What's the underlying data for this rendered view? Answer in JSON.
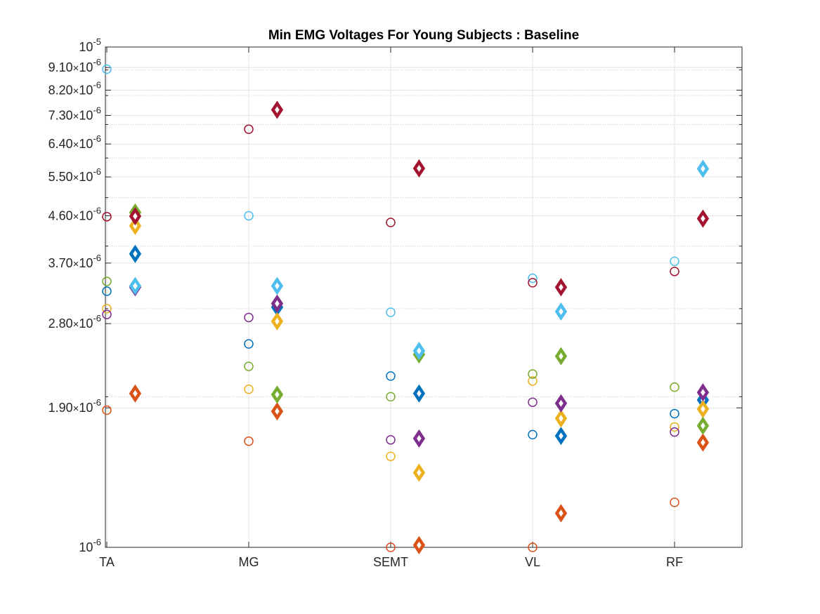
{
  "chart_data": {
    "type": "scatter",
    "title": "Min EMG Voltages For Young Subjects : Baseline",
    "xlabel": "",
    "ylabel": "",
    "y_scale": "log",
    "ylim": [
      1e-06,
      1e-05
    ],
    "categories": [
      "TA",
      "MG",
      "SEMT",
      "VL",
      "RF"
    ],
    "y_ticks": [
      {
        "value": 1e-06,
        "mantissa": "",
        "base": "10",
        "exp": "-6"
      },
      {
        "value": 1.9e-06,
        "mantissa": "1.90",
        "base": "10",
        "exp": "-6"
      },
      {
        "value": 2.8e-06,
        "mantissa": "2.80",
        "base": "10",
        "exp": "-6"
      },
      {
        "value": 3.7e-06,
        "mantissa": "3.70",
        "base": "10",
        "exp": "-6"
      },
      {
        "value": 4.6e-06,
        "mantissa": "4.60",
        "base": "10",
        "exp": "-6"
      },
      {
        "value": 5.5e-06,
        "mantissa": "5.50",
        "base": "10",
        "exp": "-6"
      },
      {
        "value": 6.4e-06,
        "mantissa": "6.40",
        "base": "10",
        "exp": "-6"
      },
      {
        "value": 7.3e-06,
        "mantissa": "7.30",
        "base": "10",
        "exp": "-6"
      },
      {
        "value": 8.2e-06,
        "mantissa": "8.20",
        "base": "10",
        "exp": "-6"
      },
      {
        "value": 9.1e-06,
        "mantissa": "9.10",
        "base": "10",
        "exp": "-6"
      },
      {
        "value": 1e-05,
        "mantissa": "",
        "base": "10",
        "exp": "-5"
      }
    ],
    "grid": true,
    "legend": "none",
    "marker_groups": [
      {
        "marker": "circle",
        "offset": 0
      },
      {
        "marker": "diamond",
        "offset": 0.2
      }
    ],
    "series": [
      {
        "color": "#0072BD",
        "circle": [
          3.25e-06,
          2.55e-06,
          2.2e-06,
          1.68e-06,
          1.85e-06
        ],
        "diamond": [
          3.86e-06,
          3.02e-06,
          2.03e-06,
          1.67e-06,
          1.97e-06
        ]
      },
      {
        "color": "#D95319",
        "circle": [
          1.88e-06,
          1.63e-06,
          1e-06,
          1e-06,
          1.23e-06
        ],
        "diamond": [
          2.03e-06,
          1.87e-06,
          1.01e-06,
          1.17e-06,
          1.62e-06
        ]
      },
      {
        "color": "#EDB120",
        "circle": [
          3e-06,
          2.07e-06,
          1.52e-06,
          2.15e-06,
          1.74e-06
        ],
        "diamond": [
          4.39e-06,
          2.83e-06,
          1.41e-06,
          1.81e-06,
          1.89e-06
        ]
      },
      {
        "color": "#7E2F8E",
        "circle": [
          2.92e-06,
          2.88e-06,
          1.64e-06,
          1.95e-06,
          1.7e-06
        ],
        "diamond": [
          3.31e-06,
          3.07e-06,
          1.65e-06,
          1.94e-06,
          2.04e-06
        ]
      },
      {
        "color": "#77AC30",
        "circle": [
          3.4e-06,
          2.3e-06,
          2e-06,
          2.22e-06,
          2.09e-06
        ],
        "diamond": [
          4.67e-06,
          2.02e-06,
          2.43e-06,
          2.41e-06,
          1.75e-06
        ]
      },
      {
        "color": "#4DBEEE",
        "circle": [
          9.03e-06,
          4.6e-06,
          2.95e-06,
          3.45e-06,
          3.73e-06
        ],
        "diamond": [
          3.33e-06,
          3.33e-06,
          2.47e-06,
          2.96e-06,
          5.71e-06
        ]
      },
      {
        "color": "#A2142F",
        "circle": [
          4.58e-06,
          6.85e-06,
          4.46e-06,
          3.38e-06,
          3.56e-06
        ],
        "diamond": [
          4.59e-06,
          7.49e-06,
          5.72e-06,
          3.31e-06,
          4.54e-06
        ]
      }
    ]
  }
}
